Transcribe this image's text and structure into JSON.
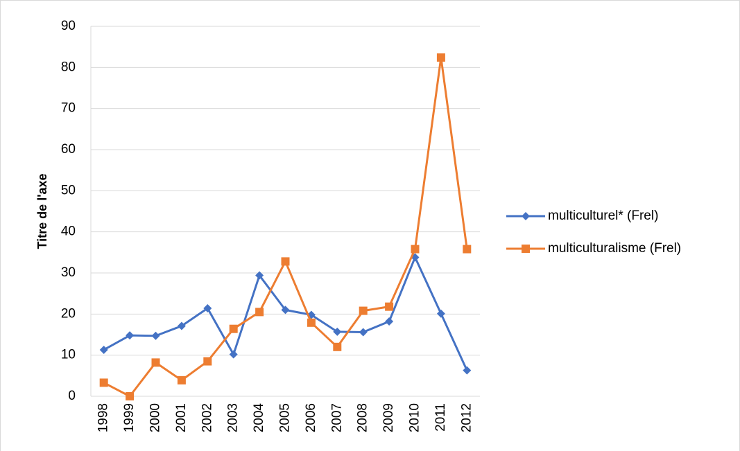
{
  "chart_data": {
    "type": "line",
    "y_label": "Titre de l'axe",
    "categories": [
      "1998",
      "1999",
      "2000",
      "2001",
      "2002",
      "2003",
      "2004",
      "2005",
      "2006",
      "2007",
      "2008",
      "2009",
      "2010",
      "2011",
      "2012"
    ],
    "series": [
      {
        "name": "multiculturel* (Frel)",
        "color": "#4472c4",
        "marker": "diamond",
        "values": [
          11.3,
          14.8,
          14.7,
          17.1,
          21.4,
          10.2,
          29.4,
          21.0,
          19.8,
          15.7,
          15.6,
          18.2,
          33.8,
          20.1,
          6.3
        ]
      },
      {
        "name": "multiculturalisme (Frel)",
        "color": "#ed7d31",
        "marker": "square",
        "values": [
          3.3,
          0,
          8.2,
          3.9,
          8.5,
          16.4,
          20.5,
          32.8,
          17.9,
          12.0,
          20.8,
          21.8,
          35.8,
          82.4,
          35.8
        ]
      }
    ],
    "ylim": [
      0,
      90
    ],
    "yticks": [
      0,
      10,
      20,
      30,
      40,
      50,
      60,
      70,
      80,
      90
    ],
    "grid": true,
    "legend": "right"
  }
}
